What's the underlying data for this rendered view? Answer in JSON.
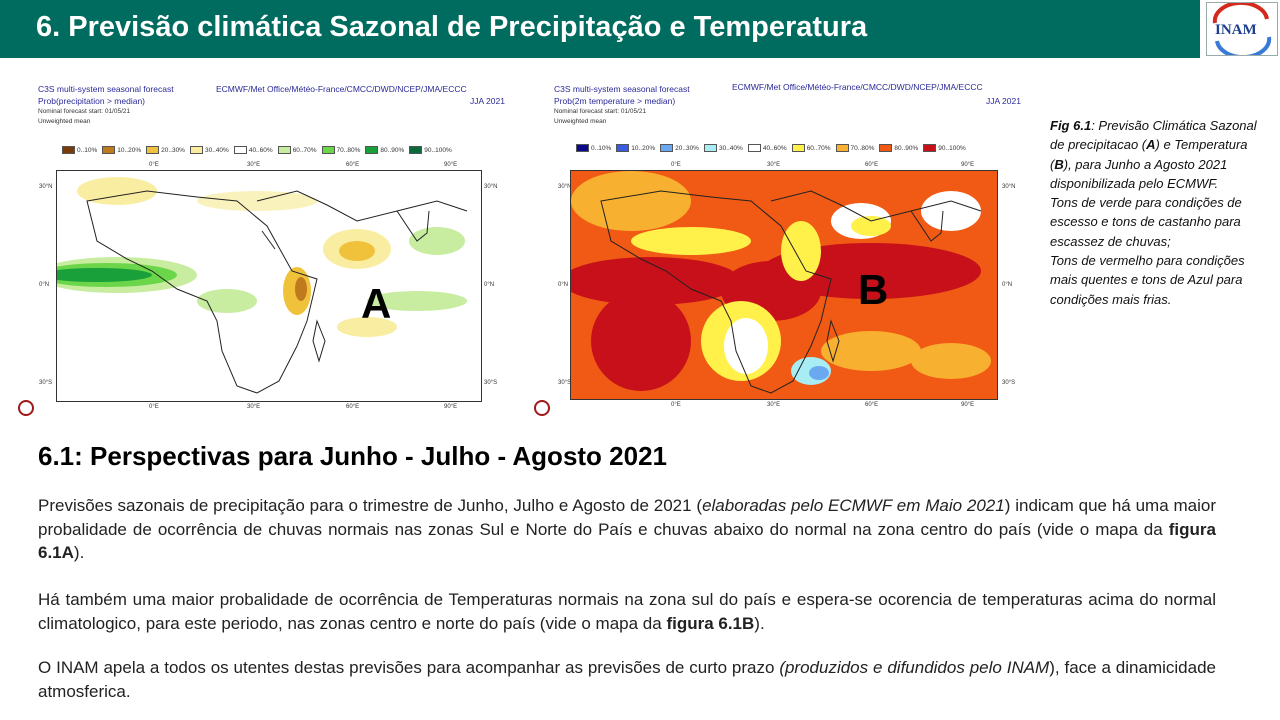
{
  "header": {
    "title": "6. Previsão climática Sazonal de Precipitação e Temperatura",
    "logo_text": "INAM"
  },
  "map_a": {
    "title_line1": "C3S multi-system seasonal forecast",
    "title_line2": "Prob(precipitation > median)",
    "title_line3": "Nominal forecast start: 01/05/21",
    "title_line4": "Unweighted mean",
    "centres": "ECMWF/Met Office/Météo-France/CMCC/DWD/NCEP/JMA/ECCC",
    "season": "JJA 2021",
    "letter": "A",
    "legend": [
      {
        "label": "0..10%",
        "color": "#7a3a0a"
      },
      {
        "label": "10..20%",
        "color": "#c07a1e"
      },
      {
        "label": "20..30%",
        "color": "#f0c23c"
      },
      {
        "label": "30..40%",
        "color": "#f8eda0"
      },
      {
        "label": "40..60%",
        "color": "#ffffff"
      },
      {
        "label": "60..70%",
        "color": "#c8eca0"
      },
      {
        "label": "70..80%",
        "color": "#6cd64a"
      },
      {
        "label": "80..90%",
        "color": "#1aa03a"
      },
      {
        "label": "90..100%",
        "color": "#0a6a3a"
      }
    ],
    "lon_ticks": [
      "0°E",
      "30°E",
      "60°E",
      "90°E"
    ],
    "lat_ticks": [
      "30°N",
      "0°N",
      "30°S"
    ]
  },
  "map_b": {
    "title_line1": "C3S multi-system seasonal forecast",
    "title_line2": "Prob(2m temperature > median)",
    "title_line3": "Nominal forecast start: 01/05/21",
    "title_line4": "Unweighted mean",
    "centres": "ECMWF/Met Office/Météo-France/CMCC/DWD/NCEP/JMA/ECCC",
    "season": "JJA 2021",
    "letter": "B",
    "legend": [
      {
        "label": "0..10%",
        "color": "#0a0a8a"
      },
      {
        "label": "10..20%",
        "color": "#3a5ae0"
      },
      {
        "label": "20..30%",
        "color": "#6aa8f0"
      },
      {
        "label": "30..40%",
        "color": "#a8ecf4"
      },
      {
        "label": "40..60%",
        "color": "#ffffff"
      },
      {
        "label": "60..70%",
        "color": "#fff04a"
      },
      {
        "label": "70..80%",
        "color": "#f8b030"
      },
      {
        "label": "80..90%",
        "color": "#f05a14"
      },
      {
        "label": "90..100%",
        "color": "#c8101a"
      }
    ],
    "lon_ticks": [
      "0°E",
      "30°E",
      "60°E",
      "90°E"
    ],
    "lat_ticks": [
      "30°N",
      "0°N",
      "30°S"
    ]
  },
  "caption": {
    "fig_label": "Fig 6.1",
    "part1": ": Previsão Climática Sazonal de precipitacao (",
    "a": "A",
    "part2": ") e Temperatura (",
    "b": "B",
    "part3": "), para Junho a Agosto 2021 disponibilizada pelo ECMWF.",
    "line2": "Tons de verde para condições de escesso e tons de castanho para escassez de chuvas;",
    "line3": "Tons de vermelho para condições mais quentes e tons de Azul para condições mais frias."
  },
  "section": {
    "heading": "6.1: Perspectivas para  Junho - Julho - Agosto 2021",
    "p1_a": "Previsões sazonais de precipitação para o trimestre de Junho, Julho e Agosto de 2021 (",
    "p1_em": "elaboradas pelo ECMWF em Maio 2021",
    "p1_b": ") indicam que há uma maior probalidade de ocorrência de chuvas normais nas zonas Sul e Norte do País e chuvas abaixo do normal na zona centro do país (vide o mapa da ",
    "p1_strong": "figura 6.1A",
    "p1_c": ").",
    "p2_a": "Há também uma maior probalidade de ocorrência de Temperaturas normais na zona sul do país e espera-se ocorencia de temperaturas acima do normal climatologico, para este periodo, nas zonas centro e norte do país (vide o mapa da ",
    "p2_strong": "figura 6.1B",
    "p2_c": ").",
    "p3_a": "O INAM apela a todos os utentes destas previsões para acompanhar as previsões de curto prazo ",
    "p3_em": "(produzidos e difundidos pelo INAM",
    "p3_c": "), face a dinamicidade atmosferica."
  }
}
